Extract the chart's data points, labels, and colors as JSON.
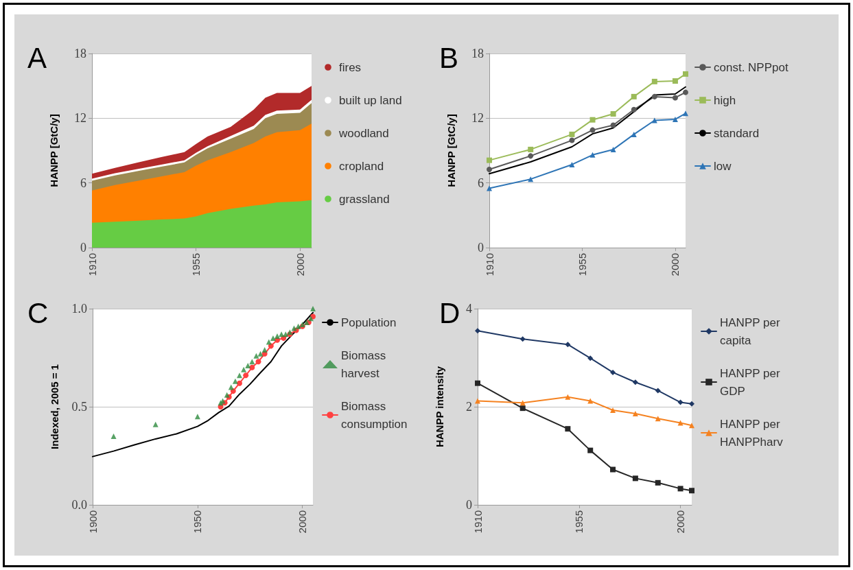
{
  "chart_data": [
    {
      "type": "area",
      "title": "A",
      "ylabel": "HANPP [GtC/y]",
      "stacked": true,
      "x": [
        1910,
        1920,
        1930,
        1940,
        1950,
        1955,
        1960,
        1970,
        1980,
        1985,
        1990,
        2000,
        2005
      ],
      "series": [
        {
          "name": "grassland",
          "color": "#66cc44",
          "values": [
            2.3,
            2.4,
            2.5,
            2.6,
            2.7,
            2.9,
            3.2,
            3.6,
            3.9,
            4.0,
            4.2,
            4.3,
            4.4
          ]
        },
        {
          "name": "cropland",
          "color": "#ff8000",
          "values": [
            3.0,
            3.4,
            3.7,
            4.0,
            4.3,
            4.7,
            4.9,
            5.25,
            5.8,
            6.3,
            6.5,
            6.6,
            7.1
          ]
        },
        {
          "name": "woodland",
          "color": "#9c8a52",
          "values": [
            0.9,
            0.9,
            0.9,
            0.9,
            0.9,
            1.0,
            1.1,
            1.25,
            1.3,
            1.7,
            1.7,
            1.6,
            1.9
          ]
        },
        {
          "name": "built up land",
          "color": "#ffffff",
          "values": [
            0.2,
            0.2,
            0.2,
            0.2,
            0.2,
            0.2,
            0.2,
            0.25,
            0.3,
            0.3,
            0.3,
            0.3,
            0.3
          ]
        },
        {
          "name": "fires",
          "color": "#b22a2a",
          "values": [
            0.45,
            0.5,
            0.6,
            0.7,
            0.75,
            0.8,
            0.9,
            0.85,
            1.5,
            1.6,
            1.65,
            1.55,
            1.3
          ]
        }
      ],
      "xlim": [
        1910,
        2005
      ],
      "xticks": [
        1910,
        1955,
        2000
      ],
      "ylim": [
        0,
        18
      ],
      "yticks": [
        0,
        6,
        12,
        18
      ],
      "grid": "y",
      "legend": "right"
    },
    {
      "type": "line",
      "title": "B",
      "ylabel": "HANPP [GtC/y]",
      "x": [
        1910,
        1930,
        1950,
        1960,
        1970,
        1980,
        1990,
        2000,
        2005
      ],
      "series": [
        {
          "name": "const. NPPpot",
          "color": "#595959",
          "marker": "circle",
          "values": [
            7.25,
            8.5,
            9.95,
            10.9,
            11.35,
            12.8,
            14.0,
            13.9,
            14.4
          ]
        },
        {
          "name": "high",
          "color": "#9bbb59",
          "marker": "square",
          "values": [
            8.1,
            9.1,
            10.5,
            11.85,
            12.4,
            14.0,
            15.4,
            15.45,
            16.1
          ]
        },
        {
          "name": "standard",
          "color": "#000000",
          "marker": "none",
          "values": [
            6.85,
            7.95,
            9.35,
            10.55,
            11.1,
            12.6,
            14.15,
            14.25,
            14.9
          ]
        },
        {
          "name": "low",
          "color": "#2e75b6",
          "marker": "triangle",
          "values": [
            5.5,
            6.35,
            7.7,
            8.6,
            9.1,
            10.5,
            11.8,
            11.9,
            12.45
          ]
        }
      ],
      "xlim": [
        1910,
        2005
      ],
      "xticks": [
        1910,
        1955,
        2000
      ],
      "ylim": [
        0,
        18
      ],
      "yticks": [
        0,
        6,
        12,
        18
      ],
      "grid": "y",
      "legend": "right"
    },
    {
      "type": "line",
      "title": "C",
      "ylabel": "Indexed, 2005 = 1",
      "series": [
        {
          "name": "Population",
          "color": "#000000",
          "marker": "none",
          "x": [
            1900,
            1910,
            1920,
            1930,
            1940,
            1950,
            1955,
            1960,
            1965,
            1970,
            1975,
            1980,
            1985,
            1990,
            1995,
            2000,
            2005
          ],
          "values": [
            0.246,
            0.274,
            0.306,
            0.336,
            0.362,
            0.4,
            0.43,
            0.47,
            0.503,
            0.564,
            0.615,
            0.674,
            0.73,
            0.81,
            0.866,
            0.92,
            0.98
          ]
        },
        {
          "name": "Biomass harvest",
          "type": "scatter",
          "color": "#2e8b3e",
          "marker": "triangle",
          "x": [
            1910,
            1930,
            1950,
            1961,
            1962,
            1964,
            1966,
            1968,
            1970,
            1972,
            1974,
            1976,
            1978,
            1980,
            1982,
            1984,
            1986,
            1988,
            1990,
            1992,
            1994,
            1996,
            1998,
            2000,
            2002,
            2004,
            2005
          ],
          "values": [
            0.35,
            0.41,
            0.45,
            0.52,
            0.53,
            0.56,
            0.6,
            0.63,
            0.66,
            0.69,
            0.71,
            0.73,
            0.76,
            0.77,
            0.79,
            0.83,
            0.85,
            0.86,
            0.87,
            0.87,
            0.88,
            0.9,
            0.91,
            0.92,
            0.93,
            0.95,
            1.0
          ]
        },
        {
          "name": "Biomass consumption",
          "color": "#ff4040",
          "marker": "circle",
          "x": [
            1961,
            1963,
            1965,
            1967,
            1970,
            1973,
            1976,
            1979,
            1982,
            1985,
            1988,
            1991,
            1994,
            1997,
            2000,
            2003,
            2005
          ],
          "values": [
            0.5,
            0.52,
            0.55,
            0.58,
            0.62,
            0.66,
            0.7,
            0.73,
            0.77,
            0.81,
            0.84,
            0.85,
            0.87,
            0.89,
            0.91,
            0.93,
            0.96
          ]
        }
      ],
      "xlim": [
        1900,
        2005
      ],
      "xticks": [
        1900,
        1950,
        2000
      ],
      "ylim": [
        0,
        1
      ],
      "yticks": [
        {
          "value": 0,
          "label": "0.0"
        },
        {
          "value": 0.5,
          "label": "0.5"
        },
        {
          "value": 1,
          "label": "1.0"
        }
      ],
      "grid": "y",
      "legend": "right"
    },
    {
      "type": "line",
      "title": "D",
      "ylabel": "HANPP intensity",
      "x": [
        1910,
        1930,
        1950,
        1960,
        1970,
        1980,
        1990,
        2000,
        2005
      ],
      "series": [
        {
          "name": "HANPP per capita",
          "color": "#1f3864",
          "marker": "diamond",
          "values": [
            3.55,
            3.38,
            3.27,
            2.99,
            2.7,
            2.5,
            2.33,
            2.09,
            2.06
          ]
        },
        {
          "name": "HANPP per GDP",
          "color": "#262626",
          "marker": "square",
          "values": [
            2.48,
            1.97,
            1.55,
            1.11,
            0.72,
            0.54,
            0.45,
            0.33,
            0.29
          ]
        },
        {
          "name": "HANPP per HANPPharv",
          "color": "#f58220",
          "marker": "triangle",
          "values": [
            2.12,
            2.08,
            2.2,
            2.12,
            1.93,
            1.86,
            1.76,
            1.67,
            1.62
          ]
        }
      ],
      "xlim": [
        1910,
        2005
      ],
      "xticks": [
        1910,
        1955,
        2000
      ],
      "ylim": [
        0,
        4
      ],
      "yticks": [
        0,
        2,
        4
      ],
      "grid": "y",
      "legend": "right"
    }
  ]
}
